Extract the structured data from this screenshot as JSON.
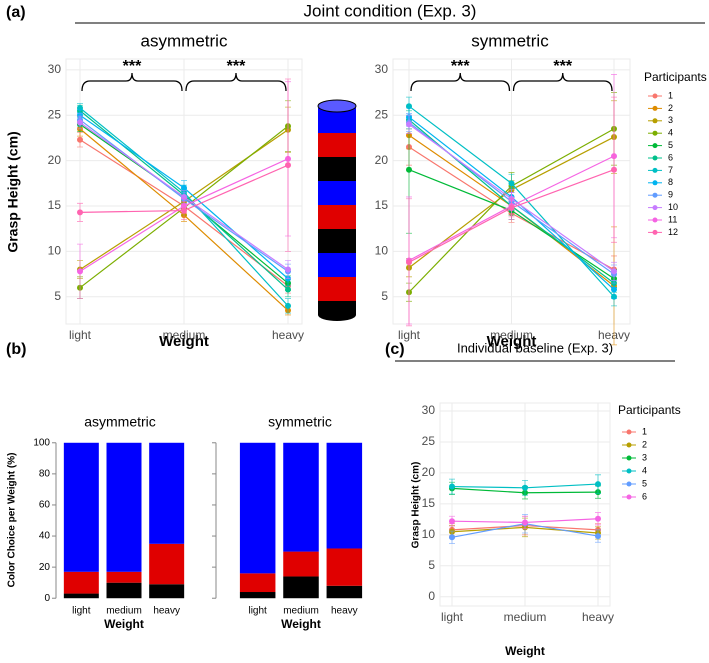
{
  "header": "Joint condition (Exp. 3)",
  "panel_labels": [
    "(a)",
    "(b)",
    "(c)"
  ],
  "chart_data": [
    {
      "type": "line",
      "title": "asymmetric",
      "x_label": "Weight",
      "y_label": "Grasp Height (cm)",
      "categories": [
        "light",
        "medium",
        "heavy"
      ],
      "ylim": [
        2,
        31.2
      ],
      "yticks": [
        5,
        10,
        15,
        20,
        25,
        30
      ],
      "grid": true,
      "annotations": [
        "***",
        "***"
      ],
      "series": [
        {
          "color": "#F8766D",
          "values": [
            22.3,
            15.0,
            6.2
          ],
          "errors": [
            0.8,
            0.7,
            0.8
          ]
        },
        {
          "color": "#DE8C00",
          "values": [
            23.5,
            14.0,
            3.5
          ],
          "errors": [
            0.8,
            0.7,
            0.5
          ]
        },
        {
          "color": "#B79F00",
          "values": [
            8.0,
            15.5,
            23.4
          ],
          "errors": [
            1.0,
            0.8,
            2.5
          ]
        },
        {
          "color": "#7CAE00",
          "values": [
            6.0,
            14.8,
            23.8
          ],
          "errors": [
            1.2,
            0.8,
            2.8
          ]
        },
        {
          "color": "#00BA38",
          "values": [
            24.0,
            16.0,
            6.5
          ],
          "errors": [
            0.8,
            0.7,
            0.8
          ]
        },
        {
          "color": "#00C08B",
          "values": [
            25.5,
            16.2,
            5.8
          ],
          "errors": [
            0.6,
            0.7,
            0.8
          ]
        },
        {
          "color": "#00BFC4",
          "values": [
            25.8,
            16.5,
            4.0
          ],
          "errors": [
            0.5,
            0.8,
            0.8
          ]
        },
        {
          "color": "#00B4F0",
          "values": [
            25.0,
            17.0,
            7.0
          ],
          "errors": [
            0.6,
            0.8,
            0.8
          ]
        },
        {
          "color": "#619CFF",
          "values": [
            24.5,
            15.8,
            7.8
          ],
          "errors": [
            0.7,
            0.7,
            0.8
          ]
        },
        {
          "color": "#C77CFF",
          "values": [
            24.2,
            16.0,
            8.0
          ],
          "errors": [
            0.7,
            0.7,
            1.0
          ]
        },
        {
          "color": "#F564E3",
          "values": [
            7.8,
            15.0,
            20.2
          ],
          "errors": [
            3.0,
            0.8,
            8.5
          ]
        },
        {
          "color": "#FF64B0",
          "values": [
            14.3,
            14.5,
            19.5
          ],
          "errors": [
            1.0,
            1.0,
            9.5
          ]
        }
      ]
    },
    {
      "type": "line",
      "title": "symmetric",
      "x_label": "Weight",
      "legend_title": "Participants",
      "categories": [
        "light",
        "medium",
        "heavy"
      ],
      "ylim": [
        2,
        31.2
      ],
      "yticks": [
        5,
        10,
        15,
        20,
        25,
        30
      ],
      "grid": true,
      "annotations": [
        "***",
        "***"
      ],
      "series": [
        {
          "name": "1",
          "color": "#F8766D",
          "values": [
            21.5,
            14.2,
            8.0
          ],
          "errors": [
            2.0,
            1.0,
            1.5
          ]
        },
        {
          "name": "2",
          "color": "#DE8C00",
          "values": [
            22.8,
            15.0,
            6.2
          ],
          "errors": [
            1.5,
            1.0,
            6.5
          ]
        },
        {
          "name": "3",
          "color": "#B79F00",
          "values": [
            8.2,
            16.8,
            22.6
          ],
          "errors": [
            1.0,
            1.0,
            4.0
          ]
        },
        {
          "name": "4",
          "color": "#7CAE00",
          "values": [
            5.5,
            17.2,
            23.5
          ],
          "errors": [
            1.0,
            1.5,
            4.0
          ]
        },
        {
          "name": "5",
          "color": "#00BA38",
          "values": [
            19.0,
            14.5,
            7.0
          ],
          "errors": [
            7.0,
            1.0,
            1.0
          ]
        },
        {
          "name": "6",
          "color": "#00C08B",
          "values": [
            24.5,
            15.0,
            6.5
          ],
          "errors": [
            1.0,
            1.0,
            1.0
          ]
        },
        {
          "name": "7",
          "color": "#00BFC4",
          "values": [
            26.0,
            17.5,
            5.0
          ],
          "errors": [
            1.0,
            1.0,
            1.0
          ]
        },
        {
          "name": "8",
          "color": "#00B4F0",
          "values": [
            24.8,
            16.0,
            5.8
          ],
          "errors": [
            1.0,
            1.0,
            1.0
          ]
        },
        {
          "name": "9",
          "color": "#619CFF",
          "values": [
            24.2,
            15.5,
            7.5
          ],
          "errors": [
            1.0,
            1.0,
            1.0
          ]
        },
        {
          "name": "10",
          "color": "#C77CFF",
          "values": [
            24.0,
            15.8,
            7.8
          ],
          "errors": [
            1.0,
            1.0,
            1.0
          ]
        },
        {
          "name": "11",
          "color": "#F564E3",
          "values": [
            9.0,
            15.0,
            20.5
          ],
          "errors": [
            7.0,
            1.5,
            9.0
          ]
        },
        {
          "name": "12",
          "color": "#FF64B0",
          "values": [
            8.8,
            14.8,
            19.0
          ],
          "errors": [
            7.0,
            1.0,
            8.0
          ]
        }
      ]
    },
    {
      "type": "stacked_bar",
      "title": "asymmetric",
      "x_label": "Weight",
      "y_label": "Color Choice per Weight (%)",
      "categories": [
        "light",
        "medium",
        "heavy"
      ],
      "ylim": [
        -5,
        105
      ],
      "yticks": [
        0,
        20,
        40,
        60,
        80,
        100
      ],
      "series": [
        {
          "color": "#000000",
          "values": [
            3,
            10,
            9
          ]
        },
        {
          "color": "#e00000",
          "values": [
            14,
            7,
            26
          ]
        },
        {
          "color": "#0000ff",
          "values": [
            83,
            83,
            65
          ]
        }
      ]
    },
    {
      "type": "stacked_bar",
      "title": "symmetric",
      "x_label": "Weight",
      "categories": [
        "light",
        "medium",
        "heavy"
      ],
      "ylim": [
        -5,
        105
      ],
      "yticks": [
        0,
        20,
        40,
        60,
        80,
        100
      ],
      "series": [
        {
          "color": "#000000",
          "values": [
            4,
            14,
            8
          ]
        },
        {
          "color": "#e00000",
          "values": [
            12,
            16,
            24
          ]
        },
        {
          "color": "#0000ff",
          "values": [
            84,
            70,
            68
          ]
        }
      ]
    },
    {
      "type": "line",
      "title": "Individual baseline (Exp. 3)",
      "x_label": "Weight",
      "y_label": "Grasp Height (cm)",
      "legend_title": "Participants",
      "categories": [
        "light",
        "medium",
        "heavy"
      ],
      "ylim": [
        -1.5,
        31.3
      ],
      "yticks": [
        0,
        5,
        10,
        15,
        20,
        25,
        30
      ],
      "grid": true,
      "series": [
        {
          "name": "1",
          "color": "#F8766D",
          "values": [
            10.8,
            11.5,
            10.8
          ],
          "errors": [
            1.0,
            1.5,
            1.0
          ]
        },
        {
          "name": "2",
          "color": "#B79F00",
          "values": [
            10.5,
            11.2,
            10.3
          ],
          "errors": [
            1.0,
            1.5,
            1.0
          ]
        },
        {
          "name": "3",
          "color": "#00BA38",
          "values": [
            17.5,
            16.8,
            16.9
          ],
          "errors": [
            1.0,
            1.0,
            1.0
          ]
        },
        {
          "name": "4",
          "color": "#00BFC4",
          "values": [
            17.8,
            17.6,
            18.2
          ],
          "errors": [
            1.2,
            1.2,
            1.5
          ]
        },
        {
          "name": "5",
          "color": "#619CFF",
          "values": [
            9.6,
            11.8,
            9.8
          ],
          "errors": [
            1.0,
            1.5,
            1.0
          ]
        },
        {
          "name": "6",
          "color": "#F564E3",
          "values": [
            12.2,
            12.0,
            12.6
          ],
          "errors": [
            0.8,
            1.0,
            1.0
          ]
        }
      ]
    }
  ]
}
